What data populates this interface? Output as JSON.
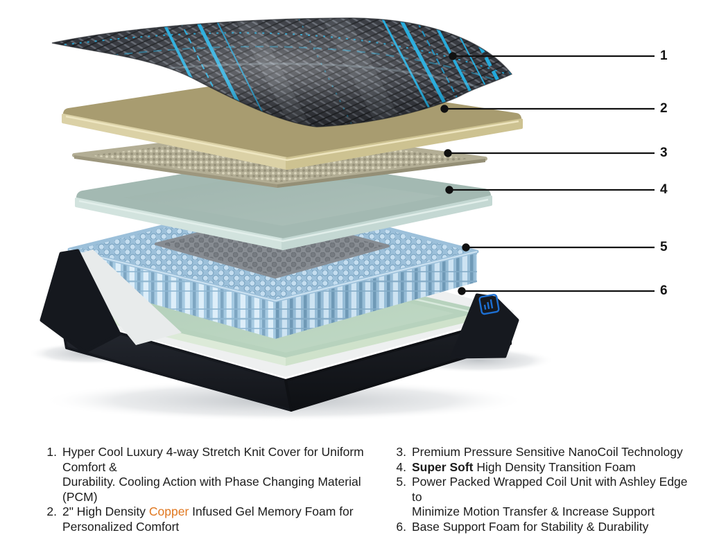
{
  "figure": {
    "description": "Exploded layer diagram of a mattress with six numbered callouts",
    "callouts": [
      {
        "number": "1"
      },
      {
        "number": "2"
      },
      {
        "number": "3"
      },
      {
        "number": "4"
      },
      {
        "number": "5"
      },
      {
        "number": "6"
      }
    ],
    "logo_icon": "ashley-mark-icon",
    "layers": [
      {
        "id": 1,
        "name": "stretch-knit-cover"
      },
      {
        "id": 2,
        "name": "copper-gel-memory-foam"
      },
      {
        "id": 3,
        "name": "nanocoil-layer"
      },
      {
        "id": 4,
        "name": "transition-foam"
      },
      {
        "id": 5,
        "name": "wrapped-coil-unit"
      },
      {
        "id": 6,
        "name": "base-support-foam"
      }
    ]
  },
  "legend": {
    "items": [
      {
        "num": "1.",
        "segments": [
          {
            "text": "Hyper Cool Luxury 4-way Stretch Knit Cover for Uniform Comfort &"
          },
          {
            "br": true
          },
          {
            "text": "Durability. Cooling Action with Phase Changing Material (PCM)"
          }
        ]
      },
      {
        "num": "2.",
        "segments": [
          {
            "text": "2\" High Density "
          },
          {
            "text": "Copper",
            "style": "copper"
          },
          {
            "text": " Infused Gel Memory Foam for"
          },
          {
            "br": true
          },
          {
            "text": "Personalized Comfort"
          }
        ]
      },
      {
        "num": "3.",
        "segments": [
          {
            "text": "Premium Pressure Sensitive NanoCoil Technology"
          }
        ]
      },
      {
        "num": "4.",
        "segments": [
          {
            "text": "Super Soft",
            "style": "bold"
          },
          {
            "text": " High Density Transition Foam"
          }
        ]
      },
      {
        "num": "5.",
        "segments": [
          {
            "text": "Power Packed Wrapped Coil Unit with Ashley Edge to"
          },
          {
            "br": true
          },
          {
            "text": "Minimize Motion Transfer & Increase Support"
          }
        ]
      },
      {
        "num": "6.",
        "segments": [
          {
            "text": "Base Support Foam for Stability & Durability"
          }
        ]
      }
    ]
  },
  "colors": {
    "copper_accent": "#E0771F",
    "cover_cyan": "#17A6DA",
    "cover_base": "#2B2E35",
    "tan_foam": "#A89C70",
    "nanocoil": "#B2AD94",
    "mint_foam": "#A3B9B2",
    "coil_blue": "#B5D3E9",
    "base_green": "#B7D2BD",
    "base_shell": "#16191F",
    "logo_blue": "#1D6FD2",
    "callout_line": "#111111"
  }
}
